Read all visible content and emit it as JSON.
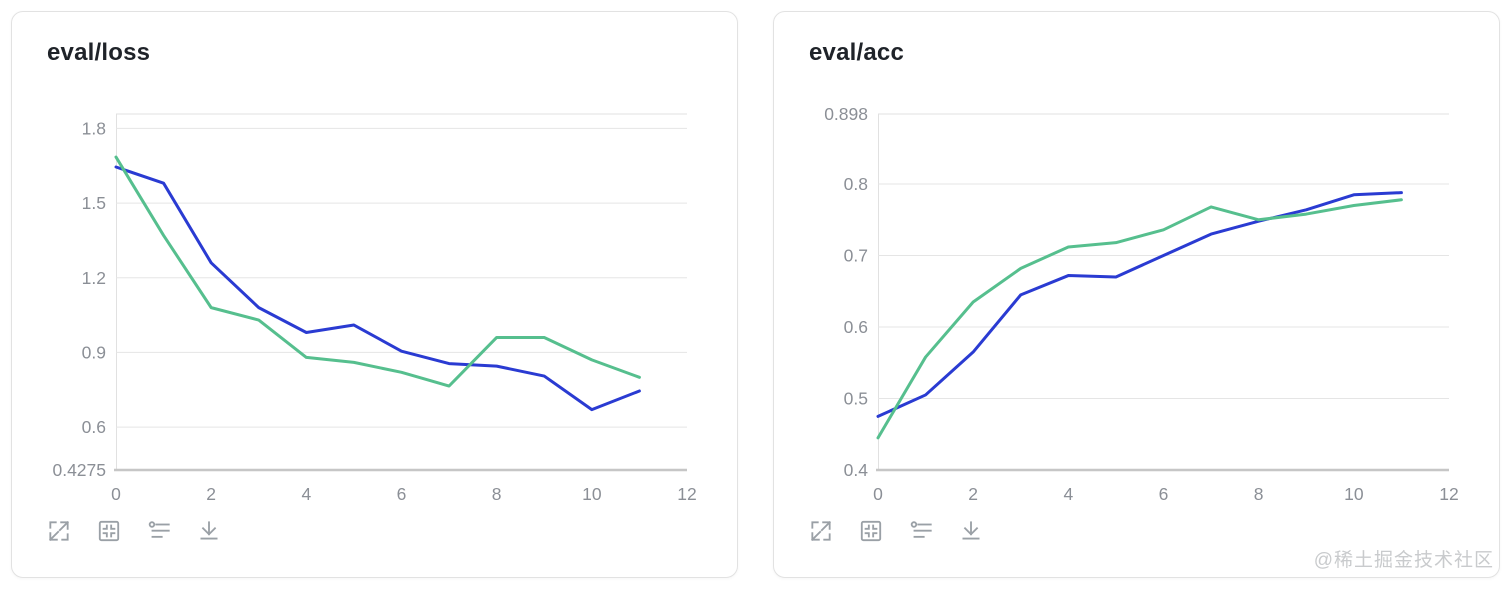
{
  "watermark": "@稀土掘金技术社区",
  "colors": {
    "blue_series": "#2a3bd2",
    "green_series": "#56bf8e",
    "gridline": "#e5e5e5",
    "plot_border": "#e1e1e1",
    "axis": "#c6c6c6",
    "tick_text": "#8b8f96",
    "title_text": "#1f2329",
    "icon": "#9aa0a6",
    "card_border": "#e2e2e2"
  },
  "toolbar": {
    "icons": [
      {
        "name": "expand-icon"
      },
      {
        "name": "fit-frame-icon"
      },
      {
        "name": "filter-lines-icon"
      },
      {
        "name": "download-icon"
      }
    ]
  },
  "chart_data": [
    {
      "type": "line",
      "title": "eval/loss",
      "x": [
        0,
        1,
        2,
        3,
        4,
        5,
        6,
        7,
        8,
        9,
        10,
        11
      ],
      "series": [
        {
          "name": "blue-run",
          "color": "#2a3bd2",
          "values": [
            1.645,
            1.58,
            1.26,
            1.08,
            0.98,
            1.01,
            0.905,
            0.855,
            0.845,
            0.805,
            0.67,
            0.745
          ]
        },
        {
          "name": "green-run",
          "color": "#56bf8e",
          "values": [
            1.685,
            1.37,
            1.08,
            1.03,
            0.88,
            0.86,
            0.82,
            0.765,
            0.96,
            0.96,
            0.87,
            0.8
          ]
        }
      ],
      "xlim": [
        0,
        12
      ],
      "ylim": [
        0.4275,
        1.858
      ],
      "x_ticks": [
        0,
        2,
        4,
        6,
        8,
        10,
        12
      ],
      "y_grid": [
        1.8,
        1.5,
        1.2,
        0.9,
        0.6
      ],
      "y_labels": [
        {
          "v": 1.8,
          "t": "1.8"
        },
        {
          "v": 1.5,
          "t": "1.5"
        },
        {
          "v": 1.2,
          "t": "1.2"
        },
        {
          "v": 0.9,
          "t": "0.9"
        },
        {
          "v": 0.6,
          "t": "0.6"
        },
        {
          "v": 0.4275,
          "t": "0.4275"
        }
      ],
      "grid": "horizontal-only",
      "legend": "none"
    },
    {
      "type": "line",
      "title": "eval/acc",
      "x": [
        0,
        1,
        2,
        3,
        4,
        5,
        6,
        7,
        8,
        9,
        10,
        11
      ],
      "series": [
        {
          "name": "blue-run",
          "color": "#2a3bd2",
          "values": [
            0.475,
            0.505,
            0.565,
            0.645,
            0.672,
            0.67,
            0.7,
            0.73,
            0.748,
            0.764,
            0.785,
            0.788
          ]
        },
        {
          "name": "green-run",
          "color": "#56bf8e",
          "values": [
            0.445,
            0.558,
            0.635,
            0.682,
            0.712,
            0.718,
            0.736,
            0.768,
            0.75,
            0.758,
            0.77,
            0.778
          ]
        }
      ],
      "xlim": [
        0,
        12
      ],
      "ylim": [
        0.4,
        0.898
      ],
      "x_ticks": [
        0,
        2,
        4,
        6,
        8,
        10,
        12
      ],
      "y_grid": [
        0.8,
        0.7,
        0.6,
        0.5
      ],
      "y_labels": [
        {
          "v": 0.898,
          "t": "0.898"
        },
        {
          "v": 0.8,
          "t": "0.8"
        },
        {
          "v": 0.7,
          "t": "0.7"
        },
        {
          "v": 0.6,
          "t": "0.6"
        },
        {
          "v": 0.5,
          "t": "0.5"
        },
        {
          "v": 0.4,
          "t": "0.4"
        }
      ],
      "grid": "horizontal-only",
      "legend": "none"
    }
  ]
}
